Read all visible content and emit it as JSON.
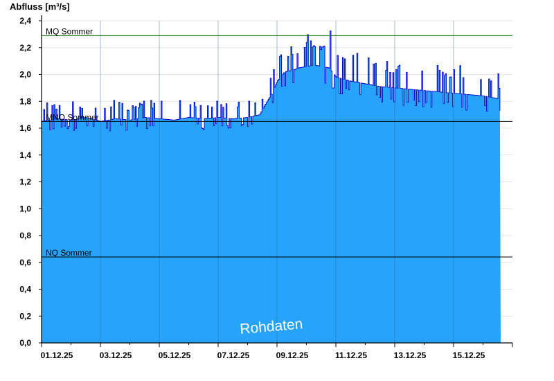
{
  "chart_data": {
    "type": "area",
    "title": "",
    "ylabel": "Abfluss [m³/s]",
    "xlabel": "",
    "ylim": [
      0,
      2.4
    ],
    "yticks": [
      "0,0",
      "0,2",
      "0,4",
      "0,6",
      "0,8",
      "1,0",
      "1,2",
      "1,4",
      "1,6",
      "1,8",
      "2,0",
      "2,2",
      "2,4"
    ],
    "xlim_days": [
      0,
      16.0
    ],
    "xticks": [
      "01.12.25",
      "03.12.25",
      "05.12.25",
      "07.12.25",
      "09.12.25",
      "11.12.25",
      "13.12.25",
      "15.12.25"
    ],
    "grid": true,
    "annotation": "Rohdaten",
    "reference_lines": [
      {
        "name": "MQ Sommer",
        "value": 2.29,
        "color": "#1e7a1e"
      },
      {
        "name": "MNQ Sommer",
        "value": 1.65,
        "color": "#000000"
      },
      {
        "name": "NQ Sommer",
        "value": 0.64,
        "color": "#000000"
      }
    ],
    "series": [
      {
        "fill_color": "#28a3fc",
        "line_color": "#0000c8",
        "x": [
          0.0,
          0.5,
          1.0,
          1.5,
          2.0,
          2.5,
          3.0,
          3.5,
          4.0,
          4.5,
          5.0,
          5.5,
          6.0,
          6.5,
          7.0,
          7.2,
          7.4,
          7.6,
          7.8,
          8.0,
          8.25,
          8.5,
          8.75,
          9.0,
          9.25,
          9.5,
          9.75,
          10.0,
          10.5,
          11.0,
          11.5,
          12.0,
          12.5,
          13.0,
          13.5,
          14.0,
          14.5,
          15.0,
          15.5,
          15.6
        ],
        "y": [
          1.65,
          1.67,
          1.66,
          1.68,
          1.65,
          1.67,
          1.66,
          1.68,
          1.67,
          1.66,
          1.68,
          1.67,
          1.68,
          1.67,
          1.68,
          1.69,
          1.7,
          1.78,
          1.85,
          1.95,
          2.02,
          2.03,
          2.05,
          2.06,
          2.07,
          2.06,
          2.05,
          1.98,
          1.95,
          1.93,
          1.91,
          1.9,
          1.89,
          1.88,
          1.87,
          1.86,
          1.85,
          1.84,
          1.82,
          1.7
        ]
      }
    ]
  }
}
